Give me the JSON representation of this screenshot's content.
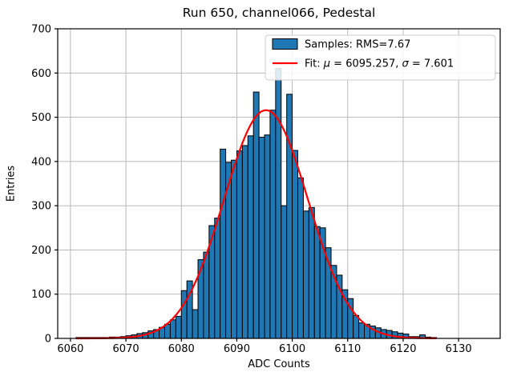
{
  "chart_data": {
    "type": "bar",
    "subtype": "histogram-with-gaussian-fit",
    "title": "Run 650, channel066, Pedestal",
    "xlabel": "ADC Counts",
    "ylabel": "Entries",
    "xlim": [
      6057.7,
      6137.5
    ],
    "ylim": [
      0,
      700
    ],
    "xticks": [
      6060,
      6070,
      6080,
      6090,
      6100,
      6110,
      6120,
      6130
    ],
    "xtick_labels": [
      "6060",
      "6070",
      "6080",
      "6090",
      "6100",
      "6110",
      "6120",
      "6130"
    ],
    "yticks": [
      0,
      100,
      200,
      300,
      400,
      500,
      600,
      700
    ],
    "ytick_labels": [
      "0",
      "100",
      "200",
      "300",
      "400",
      "500",
      "600",
      "700"
    ],
    "grid": true,
    "legend_position": "upper right",
    "colors": {
      "bar_fill": "#1f77b4",
      "bar_edge": "#000000",
      "fit_line": "#ff0000",
      "grid": "#b0b0b0",
      "spine": "#000000",
      "legend_border": "#cccccc"
    },
    "legend": {
      "items": [
        {
          "swatch": "patch",
          "label": "Samples: RMS=7.67"
        },
        {
          "swatch": "line",
          "label": "Fit: μ = 6095.257, σ = 7.601"
        }
      ]
    },
    "bins_start": 6061,
    "bin_width": 1,
    "counts": [
      2,
      2,
      2,
      2,
      2,
      2,
      3,
      3,
      4,
      6,
      8,
      11,
      13,
      17,
      20,
      25,
      32,
      42,
      50,
      108,
      130,
      65,
      178,
      195,
      255,
      272,
      428,
      398,
      403,
      424,
      436,
      458,
      557,
      455,
      460,
      516,
      610,
      300,
      552,
      425,
      363,
      288,
      296,
      253,
      250,
      205,
      165,
      143,
      110,
      90,
      52,
      35,
      32,
      28,
      24,
      20,
      18,
      15,
      12,
      10,
      4,
      4,
      8,
      3,
      2
    ],
    "fit": {
      "mu": 6095.257,
      "sigma": 7.601,
      "amplitude": 516,
      "range": [
        6061,
        6126
      ],
      "rms_label_value": "7.67"
    }
  }
}
